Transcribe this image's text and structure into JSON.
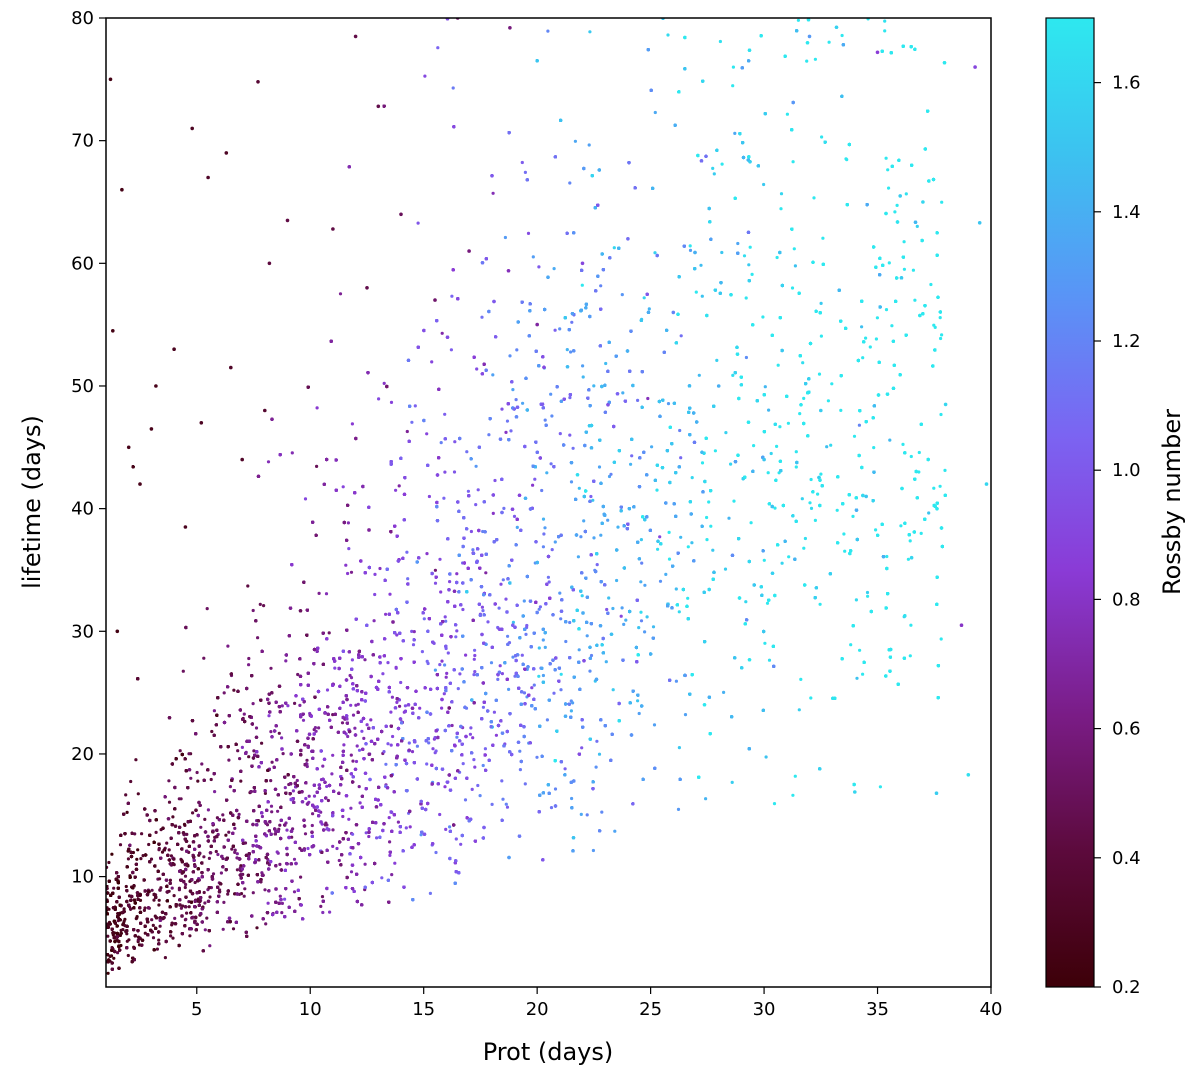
{
  "chart_data": {
    "type": "scatter",
    "title": "",
    "xlabel": "Prot (days)",
    "ylabel": "lifetime (days)",
    "xlim": [
      1,
      40
    ],
    "ylim": [
      1,
      80
    ],
    "xticks": [
      5,
      10,
      15,
      20,
      25,
      30,
      35,
      40
    ],
    "yticks": [
      10,
      20,
      30,
      40,
      50,
      60,
      70,
      80
    ],
    "grid": false,
    "legend": "none",
    "colorbar": {
      "label": "Rossby number",
      "range": [
        0.2,
        1.7
      ],
      "ticks": [
        0.2,
        0.4,
        0.6,
        0.8,
        1.0,
        1.2,
        1.4,
        1.6
      ],
      "tick_labels": [
        "0.2",
        "0.4",
        "0.6",
        "0.8",
        "1.0",
        "1.2",
        "1.4",
        "1.6"
      ],
      "colormap": [
        "#3d0008",
        "#5c0a3c",
        "#7a1c86",
        "#8a3bd6",
        "#7b64f2",
        "#5a93f6",
        "#3cc2f0",
        "#2ee8ef"
      ]
    },
    "approx_point_count": 20000,
    "points": [
      [
        1.2,
        75.0,
        0.25
      ],
      [
        1.7,
        66.0,
        0.26
      ],
      [
        1.3,
        54.5,
        0.25
      ],
      [
        4.0,
        53.0,
        0.3
      ],
      [
        6.3,
        69.0,
        0.32
      ],
      [
        5.5,
        67.0,
        0.33
      ],
      [
        4.8,
        71.0,
        0.31
      ],
      [
        7.7,
        74.8,
        0.38
      ],
      [
        12.0,
        78.5,
        0.45
      ],
      [
        13.0,
        72.8,
        0.46
      ],
      [
        16.5,
        80.0,
        0.55
      ],
      [
        18.8,
        79.2,
        0.6
      ],
      [
        39.3,
        76.0,
        0.9
      ],
      [
        39.5,
        63.3,
        1.5
      ],
      [
        39.8,
        42.0,
        1.6
      ],
      [
        37.0,
        65.0,
        1.6
      ],
      [
        36.0,
        65.5,
        1.55
      ],
      [
        39.0,
        18.3,
        1.65
      ],
      [
        37.6,
        16.8,
        1.55
      ],
      [
        34.0,
        16.9,
        1.6
      ],
      [
        38.7,
        30.5,
        0.8
      ],
      [
        35.0,
        77.2,
        0.85
      ],
      [
        32.0,
        78.5,
        1.3
      ],
      [
        8.2,
        60.0,
        0.42
      ],
      [
        9.0,
        63.5,
        0.44
      ],
      [
        3.2,
        50.0,
        0.28
      ],
      [
        2.5,
        42.0,
        0.28
      ],
      [
        2.0,
        45.0,
        0.27
      ],
      [
        3.0,
        46.5,
        0.28
      ],
      [
        1.5,
        30.0,
        0.25
      ],
      [
        4.5,
        38.5,
        0.3
      ],
      [
        5.2,
        47.0,
        0.31
      ],
      [
        6.5,
        51.5,
        0.33
      ],
      [
        7.0,
        44.0,
        0.34
      ],
      [
        8.0,
        48.0,
        0.36
      ],
      [
        11.0,
        62.8,
        0.44
      ],
      [
        12.5,
        58.0,
        0.46
      ],
      [
        14.0,
        64.0,
        0.5
      ],
      [
        15.5,
        57.0,
        0.55
      ],
      [
        17.0,
        61.0,
        0.6
      ],
      [
        20.0,
        55.0,
        0.7
      ],
      [
        22.0,
        60.0,
        0.9
      ],
      [
        24.0,
        62.0,
        1.1
      ],
      [
        26.0,
        56.0,
        1.2
      ],
      [
        28.0,
        50.0,
        1.4
      ],
      [
        30.0,
        44.0,
        1.5
      ],
      [
        32.5,
        48.0,
        1.55
      ],
      [
        34.5,
        41.0,
        1.5
      ],
      [
        36.5,
        36.0,
        1.6
      ],
      [
        38.0,
        48.5,
        1.6
      ]
    ]
  }
}
